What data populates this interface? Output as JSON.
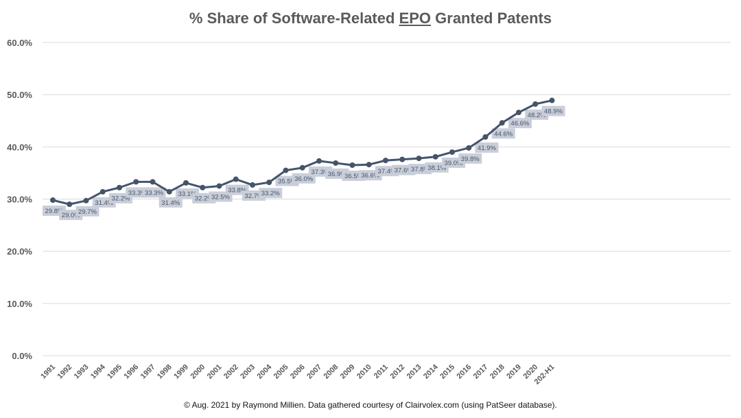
{
  "chart_data": {
    "type": "line",
    "title_parts": [
      "% Share of Software-Related ",
      "EPO",
      " Granted Patents"
    ],
    "title": "% Share of Software-Related EPO Granted Patents",
    "xlabel": "",
    "ylabel": "",
    "ylim": [
      0,
      60
    ],
    "yticks": [
      0,
      10,
      20,
      30,
      40,
      50,
      60
    ],
    "ytick_labels": [
      "0.0%",
      "10.0%",
      "20.0%",
      "30.0%",
      "40.0%",
      "50.0%",
      "60.0%"
    ],
    "grid": true,
    "legend": "none",
    "categories": [
      "1991",
      "1992",
      "1993",
      "1994",
      "1995",
      "1996",
      "1997",
      "1998",
      "1999",
      "2000",
      "2001",
      "2002",
      "2003",
      "2004",
      "2005",
      "2006",
      "2007",
      "2008",
      "2009",
      "2010",
      "2011",
      "2012",
      "2013",
      "2014",
      "2015",
      "2016",
      "2017",
      "2018",
      "2019",
      "2020",
      "202-H1"
    ],
    "series": [
      {
        "name": "% Share of Software-Related EPO Granted Patents",
        "values": [
          29.8,
          29.0,
          29.7,
          31.4,
          32.2,
          33.3,
          33.3,
          31.4,
          33.1,
          32.2,
          32.5,
          33.8,
          32.7,
          33.2,
          35.5,
          36.0,
          37.3,
          36.9,
          36.5,
          36.6,
          37.4,
          37.6,
          37.8,
          38.1,
          39.0,
          39.8,
          41.9,
          44.6,
          46.6,
          48.2,
          48.9
        ],
        "data_labels": [
          "29.8%",
          "29.0%",
          "29.7%",
          "31.4%",
          "32.2%",
          "33.3%",
          "33.3%",
          "31.4%",
          "33.1%",
          "32.2%",
          "32.5%",
          "33.8%",
          "32.7%",
          "33.2%",
          "35.5%",
          "36.0%",
          "37.3%",
          "36.9%",
          "36.5%",
          "36.6%",
          "37.4%",
          "37.6%",
          "37.8%",
          "38.1%",
          "39.0%",
          "39.8%",
          "41.9%",
          "44.6%",
          "46.6%",
          "48.2%",
          "48.9%"
        ],
        "color": "#44546a"
      }
    ],
    "label_box_color": "#c9ced9",
    "gridline_color": "#d9d9d9"
  },
  "footer": "© Aug. 2021 by Raymond Millien. Data gathered courtesy of Clairvolex.com (using PatSeer database)."
}
